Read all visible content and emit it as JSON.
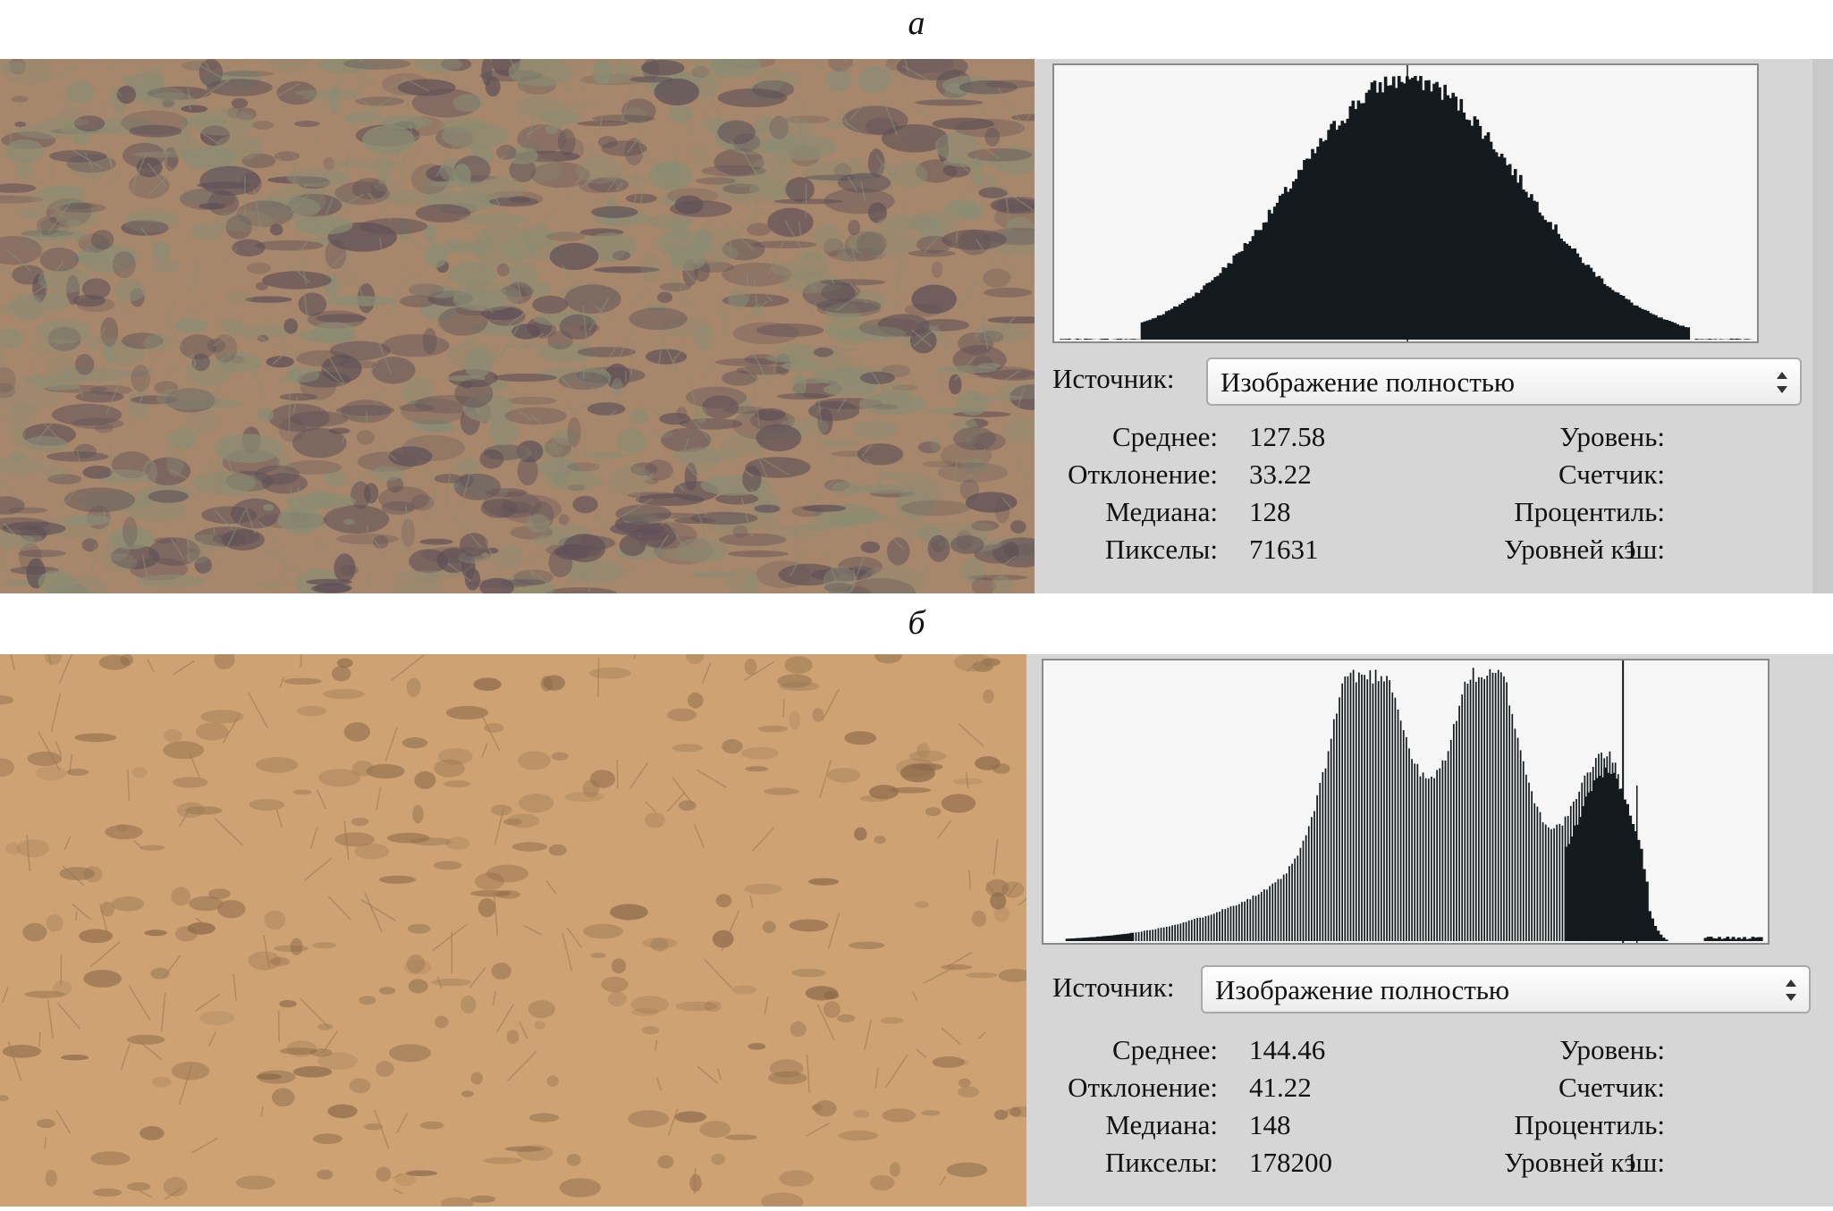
{
  "panels": [
    {
      "caption": "а",
      "histogram": {
        "type": "bar",
        "domain": [
          0,
          255
        ],
        "peak": 128,
        "profile": "unimodal",
        "bar_style": "solid",
        "fill_color": "#141a1d"
      },
      "source_label": "Источник:",
      "source_value": "Изображение полностью",
      "stats": {
        "mean_label": "Среднее:",
        "mean": "127.58",
        "dev_label": "Отклонение:",
        "dev": "33.22",
        "median_label": "Медиана:",
        "median": "128",
        "pixels_label": "Пикселы:",
        "pixels": "71631",
        "level_label": "Уровень:",
        "level": "",
        "count_label": "Счетчик:",
        "count": "",
        "percentile_label": "Процентиль:",
        "percentile": "",
        "cache_label": "Уровней кэш:",
        "cache": "1"
      },
      "photo_colors": {
        "base": "#a7876b",
        "dark": "#5f5057",
        "plant": "#8a8c74"
      }
    },
    {
      "caption": "б",
      "histogram": {
        "type": "bar",
        "domain": [
          0,
          255
        ],
        "peaks": [
          113,
          157,
          200
        ],
        "profile": "trimodal",
        "bar_style": "combed",
        "fill_color": "#141a1d"
      },
      "source_label": "Источник:",
      "source_value": "Изображение полностью",
      "stats": {
        "mean_label": "Среднее:",
        "mean": "144.46",
        "dev_label": "Отклонение:",
        "dev": "41.22",
        "median_label": "Медиана:",
        "median": "148",
        "pixels_label": "Пикселы:",
        "pixels": "178200",
        "level_label": "Уровень:",
        "level": "",
        "count_label": "Счетчик:",
        "count": "",
        "percentile_label": "Процентиль:",
        "percentile": "",
        "cache_label": "Уровней кэш:",
        "cache": "1"
      },
      "photo_colors": {
        "base": "#cfa273",
        "dark": "#8d6a4b",
        "plant": "#9b7a55"
      }
    }
  ]
}
